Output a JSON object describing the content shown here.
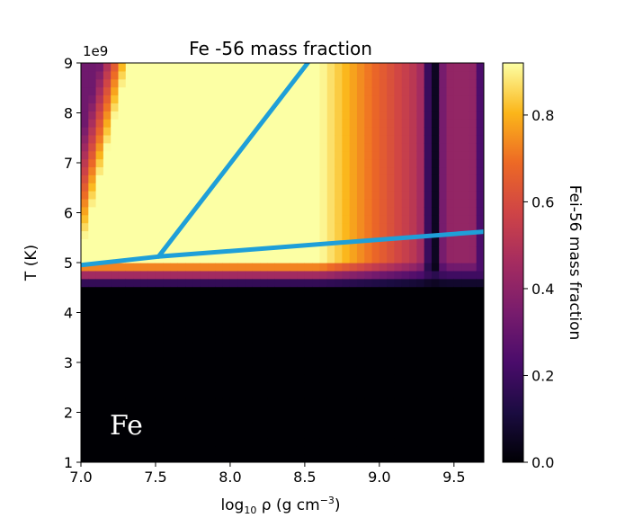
{
  "chart_data": {
    "type": "heatmap",
    "title": "Fe -56 mass fraction",
    "xlabel_parts": [
      "log",
      "10",
      " ρ (g cm",
      "−3",
      ")"
    ],
    "ylabel": "T (K)",
    "y_multiplier": "1e9",
    "xlim": [
      7.0,
      9.7
    ],
    "ylim": [
      1,
      9
    ],
    "x_ticks": [
      7.0,
      7.5,
      8.0,
      8.5,
      9.0,
      9.5
    ],
    "x_tick_labels": [
      "7.0",
      "7.5",
      "8.0",
      "8.5",
      "9.0",
      "9.5"
    ],
    "y_ticks": [
      1,
      2,
      3,
      4,
      5,
      6,
      7,
      8,
      9
    ],
    "y_tick_labels": [
      "1",
      "2",
      "3",
      "4",
      "5",
      "6",
      "7",
      "8",
      "9"
    ],
    "colorbar": {
      "label": "Fei-56 mass fraction",
      "range": [
        0.0,
        0.92
      ],
      "ticks": [
        0.0,
        0.2,
        0.4,
        0.6,
        0.8
      ],
      "tick_labels": [
        "0.0",
        "0.2",
        "0.4",
        "0.6",
        "0.8"
      ],
      "colormap": "inferno"
    },
    "annotation": "Fe",
    "overlay_lines": [
      {
        "color": "#1f9fd8",
        "points": [
          [
            7.0,
            4.95
          ],
          [
            7.52,
            5.12
          ],
          [
            9.7,
            5.62
          ]
        ]
      },
      {
        "color": "#1f9fd8",
        "points": [
          [
            7.52,
            5.12
          ],
          [
            8.52,
            9.0
          ]
        ]
      }
    ],
    "heatmap_grid": {
      "nx": 54,
      "ny": 50
    }
  }
}
